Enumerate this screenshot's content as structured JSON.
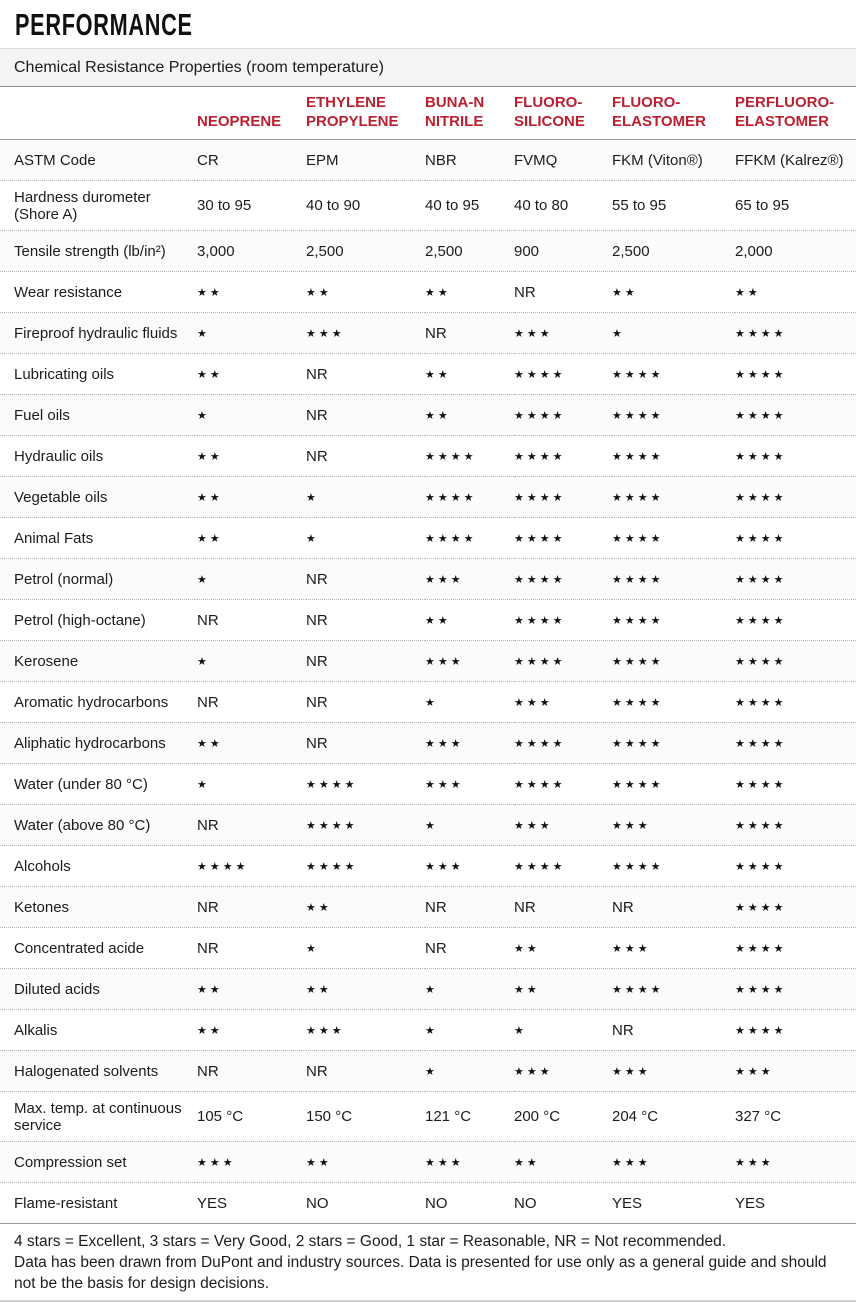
{
  "page": {
    "title": "PERFORMANCE",
    "subtitle": "Chemical Resistance Properties (room temperature)"
  },
  "colors": {
    "header_red": "#bb2030",
    "body_text": "#1c1c1c"
  },
  "table": {
    "star_char": "★",
    "columns": [
      "NEOPRENE",
      "ETHYLENE PROPYLENE",
      "BUNA-N NITRILE",
      "FLUORO-SILICONE",
      "FLUORO-ELASTOMER",
      "PERFLUORO-ELASTOMER"
    ],
    "rows": [
      {
        "label": "ASTM Code",
        "values": [
          "CR",
          "EPM",
          "NBR",
          "FVMQ",
          "FKM (Viton®)",
          "FFKM (Kalrez®)"
        ]
      },
      {
        "label": "Hardness durometer (Shore A)",
        "values": [
          "30 to 95",
          "40 to 90",
          "40 to 95",
          "40 to 80",
          "55 to 95",
          "65 to 95"
        ]
      },
      {
        "label": "Tensile strength (lb/in²)",
        "values": [
          "3,000",
          "2,500",
          "2,500",
          "900",
          "2,500",
          "2,000"
        ]
      },
      {
        "label": "Wear resistance",
        "values": [
          {
            "stars": 2
          },
          {
            "stars": 2
          },
          {
            "stars": 2
          },
          "NR",
          {
            "stars": 2
          },
          {
            "stars": 2
          }
        ]
      },
      {
        "label": "Fireproof hydraulic fluids",
        "values": [
          {
            "stars": 1
          },
          {
            "stars": 3
          },
          "NR",
          {
            "stars": 3
          },
          {
            "stars": 1
          },
          {
            "stars": 4
          }
        ]
      },
      {
        "label": "Lubricating oils",
        "values": [
          {
            "stars": 2
          },
          "NR",
          {
            "stars": 2
          },
          {
            "stars": 4
          },
          {
            "stars": 4
          },
          {
            "stars": 4
          }
        ]
      },
      {
        "label": "Fuel oils",
        "values": [
          {
            "stars": 1
          },
          "NR",
          {
            "stars": 2
          },
          {
            "stars": 4
          },
          {
            "stars": 4
          },
          {
            "stars": 4
          }
        ]
      },
      {
        "label": "Hydraulic oils",
        "values": [
          {
            "stars": 2
          },
          "NR",
          {
            "stars": 4
          },
          {
            "stars": 4
          },
          {
            "stars": 4
          },
          {
            "stars": 4
          }
        ]
      },
      {
        "label": "Vegetable oils",
        "values": [
          {
            "stars": 2
          },
          {
            "stars": 1
          },
          {
            "stars": 4
          },
          {
            "stars": 4
          },
          {
            "stars": 4
          },
          {
            "stars": 4
          }
        ]
      },
      {
        "label": "Animal Fats",
        "values": [
          {
            "stars": 2
          },
          {
            "stars": 1
          },
          {
            "stars": 4
          },
          {
            "stars": 4
          },
          {
            "stars": 4
          },
          {
            "stars": 4
          }
        ]
      },
      {
        "label": "Petrol (normal)",
        "values": [
          {
            "stars": 1
          },
          "NR",
          {
            "stars": 3
          },
          {
            "stars": 4
          },
          {
            "stars": 4
          },
          {
            "stars": 4
          }
        ]
      },
      {
        "label": "Petrol (high-octane)",
        "values": [
          "NR",
          "NR",
          {
            "stars": 2
          },
          {
            "stars": 4
          },
          {
            "stars": 4
          },
          {
            "stars": 4
          }
        ]
      },
      {
        "label": "Kerosene",
        "values": [
          {
            "stars": 1
          },
          "NR",
          {
            "stars": 3
          },
          {
            "stars": 4
          },
          {
            "stars": 4
          },
          {
            "stars": 4
          }
        ]
      },
      {
        "label": "Aromatic hydrocarbons",
        "values": [
          "NR",
          "NR",
          {
            "stars": 1
          },
          {
            "stars": 3
          },
          {
            "stars": 4
          },
          {
            "stars": 4
          }
        ]
      },
      {
        "label": "Aliphatic hydrocarbons",
        "values": [
          {
            "stars": 2
          },
          "NR",
          {
            "stars": 3
          },
          {
            "stars": 4
          },
          {
            "stars": 4
          },
          {
            "stars": 4
          }
        ]
      },
      {
        "label": "Water (under 80 °C)",
        "values": [
          {
            "stars": 1
          },
          {
            "stars": 4
          },
          {
            "stars": 3
          },
          {
            "stars": 4
          },
          {
            "stars": 4
          },
          {
            "stars": 4
          }
        ]
      },
      {
        "label": "Water (above 80 °C)",
        "values": [
          "NR",
          {
            "stars": 4
          },
          {
            "stars": 1
          },
          {
            "stars": 3
          },
          {
            "stars": 3
          },
          {
            "stars": 4
          }
        ]
      },
      {
        "label": "Alcohols",
        "values": [
          {
            "stars": 4
          },
          {
            "stars": 4
          },
          {
            "stars": 3
          },
          {
            "stars": 4
          },
          {
            "stars": 4
          },
          {
            "stars": 4
          }
        ]
      },
      {
        "label": "Ketones",
        "values": [
          "NR",
          {
            "stars": 2
          },
          "NR",
          "NR",
          "NR",
          {
            "stars": 4
          }
        ]
      },
      {
        "label": "Concentrated acide",
        "values": [
          "NR",
          {
            "stars": 1
          },
          "NR",
          {
            "stars": 2
          },
          {
            "stars": 3
          },
          {
            "stars": 4
          }
        ]
      },
      {
        "label": "Diluted acids",
        "values": [
          {
            "stars": 2
          },
          {
            "stars": 2
          },
          {
            "stars": 1
          },
          {
            "stars": 2
          },
          {
            "stars": 4
          },
          {
            "stars": 4
          }
        ]
      },
      {
        "label": "Alkalis",
        "values": [
          {
            "stars": 2
          },
          {
            "stars": 3
          },
          {
            "stars": 1
          },
          {
            "stars": 1
          },
          "NR",
          {
            "stars": 4
          }
        ]
      },
      {
        "label": "Halogenated solvents",
        "values": [
          "NR",
          "NR",
          {
            "stars": 1
          },
          {
            "stars": 3
          },
          {
            "stars": 3
          },
          {
            "stars": 3
          }
        ]
      },
      {
        "label": "Max. temp. at continuous service",
        "values": [
          "105 °C",
          "150 °C",
          "121 °C",
          "200 °C",
          "204 °C",
          "327 °C"
        ]
      },
      {
        "label": "Compression set",
        "values": [
          {
            "stars": 3
          },
          {
            "stars": 2
          },
          {
            "stars": 3
          },
          {
            "stars": 2
          },
          {
            "stars": 3
          },
          {
            "stars": 3
          }
        ]
      },
      {
        "label": "Flame-resistant",
        "values": [
          "YES",
          "NO",
          "NO",
          "NO",
          "YES",
          "YES"
        ]
      }
    ]
  },
  "footer": {
    "legend": "4 stars = Excellent, 3 stars = Very Good, 2 stars = Good, 1 star = Reasonable, NR = Not recommended.",
    "disclaimer": "Data has been drawn from DuPont and industry sources. Data is presented for use only as a general guide and should not be the basis for design decisions."
  }
}
